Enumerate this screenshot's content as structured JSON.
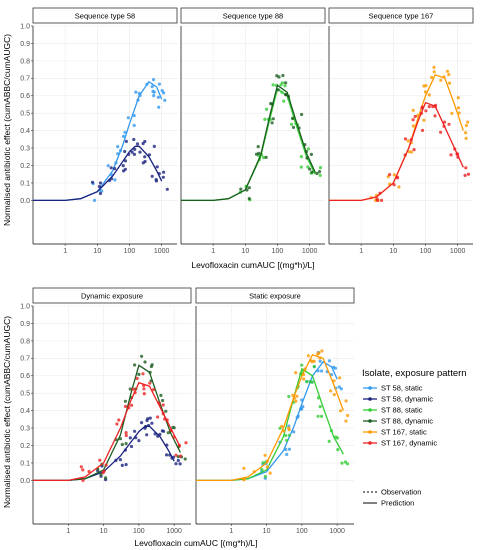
{
  "chart_data": [
    {
      "type": "line",
      "facets": [
        "Sequence type 58",
        "Sequence type 88",
        "Sequence type 167"
      ],
      "xlabel": "Levofloxacin cumAUC [(mg*h)/L]",
      "ylabel": "Normalised antibiotic effect (cumABBC/cumAUGC)",
      "x_scale": "log10",
      "xlim": [
        0.1,
        3000
      ],
      "ylim": [
        -0.25,
        1.0
      ],
      "x_ticks": [
        "1",
        "10",
        "100",
        "1000"
      ],
      "y_ticks": [
        "0.0",
        "0.1",
        "0.2",
        "0.3",
        "0.4",
        "0.5",
        "0.6",
        "0.7",
        "0.8",
        "0.9",
        "1.0"
      ],
      "series": [
        {
          "facet": 0,
          "name": "ST 58, static",
          "color": "#3399ee",
          "kind": "prediction",
          "x": [
            0.1,
            1,
            3,
            10,
            30,
            60,
            100,
            200,
            400,
            700,
            1000
          ],
          "y": [
            0.0,
            0.0,
            0.01,
            0.05,
            0.17,
            0.31,
            0.44,
            0.6,
            0.68,
            0.65,
            0.58
          ]
        },
        {
          "facet": 0,
          "name": "ST 58, dynamic",
          "color": "#1a237e",
          "kind": "prediction",
          "x": [
            0.1,
            1,
            3,
            10,
            30,
            60,
            100,
            150,
            200,
            400,
            700,
            1000
          ],
          "y": [
            0.0,
            0.0,
            0.01,
            0.05,
            0.14,
            0.22,
            0.28,
            0.31,
            0.31,
            0.25,
            0.17,
            0.11
          ]
        },
        {
          "facet": 1,
          "name": "ST 88, static",
          "color": "#33cc33",
          "kind": "prediction",
          "x": [
            0.1,
            1,
            3,
            10,
            30,
            60,
            100,
            200,
            400,
            800,
            1500
          ],
          "y": [
            0.0,
            0.0,
            0.01,
            0.06,
            0.25,
            0.48,
            0.64,
            0.6,
            0.42,
            0.25,
            0.15
          ]
        },
        {
          "facet": 1,
          "name": "ST 88, dynamic",
          "color": "#1b5e20",
          "kind": "prediction",
          "x": [
            0.1,
            1,
            3,
            10,
            30,
            60,
            100,
            200,
            400,
            800,
            1500
          ],
          "y": [
            0.0,
            0.0,
            0.01,
            0.06,
            0.26,
            0.5,
            0.66,
            0.62,
            0.44,
            0.27,
            0.16
          ]
        },
        {
          "facet": 2,
          "name": "ST 167, static",
          "color": "#ff9900",
          "kind": "prediction",
          "x": [
            0.1,
            1,
            3,
            10,
            30,
            60,
            100,
            200,
            400,
            800,
            1500
          ],
          "y": [
            0.0,
            0.0,
            0.02,
            0.1,
            0.3,
            0.48,
            0.6,
            0.72,
            0.7,
            0.55,
            0.4
          ]
        },
        {
          "facet": 2,
          "name": "ST 167, dynamic",
          "color": "#ee2222",
          "kind": "prediction",
          "x": [
            0.1,
            1,
            3,
            10,
            30,
            60,
            100,
            200,
            400,
            800,
            1500
          ],
          "y": [
            0.0,
            0.0,
            0.02,
            0.1,
            0.3,
            0.46,
            0.56,
            0.54,
            0.42,
            0.3,
            0.19
          ]
        }
      ]
    },
    {
      "type": "line",
      "facets": [
        "Dynamic exposure",
        "Static exposure"
      ],
      "xlabel": "Levofloxacin cumAUC [(mg*h)/L]",
      "ylabel": "Normalised antibiotic effect (cumABBC/cumAUGC)",
      "x_scale": "log10",
      "xlim": [
        0.1,
        3000
      ],
      "ylim": [
        -0.25,
        1.0
      ],
      "x_ticks": [
        "1",
        "10",
        "100",
        "1000"
      ],
      "y_ticks": [
        "0.0",
        "0.1",
        "0.2",
        "0.3",
        "0.4",
        "0.5",
        "0.6",
        "0.7",
        "0.8",
        "0.9",
        "1.0"
      ],
      "series": [
        {
          "facet": 0,
          "name": "ST 58, dynamic",
          "color": "#1a237e",
          "kind": "prediction",
          "x": [
            0.1,
            1,
            3,
            10,
            30,
            60,
            100,
            150,
            200,
            400,
            700,
            1000
          ],
          "y": [
            0.0,
            0.0,
            0.01,
            0.05,
            0.14,
            0.22,
            0.28,
            0.31,
            0.31,
            0.25,
            0.17,
            0.11
          ]
        },
        {
          "facet": 0,
          "name": "ST 88, dynamic",
          "color": "#1b5e20",
          "kind": "prediction",
          "x": [
            0.1,
            1,
            3,
            10,
            30,
            60,
            100,
            200,
            400,
            800,
            1500
          ],
          "y": [
            0.0,
            0.0,
            0.01,
            0.06,
            0.26,
            0.5,
            0.66,
            0.62,
            0.44,
            0.27,
            0.16
          ]
        },
        {
          "facet": 0,
          "name": "ST 167, dynamic",
          "color": "#ee2222",
          "kind": "prediction",
          "x": [
            0.1,
            1,
            3,
            10,
            30,
            60,
            100,
            200,
            400,
            800,
            1500
          ],
          "y": [
            0.0,
            0.0,
            0.02,
            0.1,
            0.3,
            0.46,
            0.56,
            0.54,
            0.42,
            0.3,
            0.19
          ]
        },
        {
          "facet": 1,
          "name": "ST 58, static",
          "color": "#3399ee",
          "kind": "prediction",
          "x": [
            0.1,
            1,
            3,
            10,
            30,
            60,
            100,
            200,
            400,
            700,
            1000
          ],
          "y": [
            0.0,
            0.0,
            0.01,
            0.05,
            0.17,
            0.31,
            0.44,
            0.6,
            0.68,
            0.65,
            0.58
          ]
        },
        {
          "facet": 1,
          "name": "ST 88, static",
          "color": "#33cc33",
          "kind": "prediction",
          "x": [
            0.1,
            1,
            3,
            10,
            30,
            60,
            100,
            200,
            400,
            800,
            1500
          ],
          "y": [
            0.0,
            0.0,
            0.01,
            0.06,
            0.25,
            0.48,
            0.64,
            0.6,
            0.42,
            0.25,
            0.15
          ]
        },
        {
          "facet": 1,
          "name": "ST 167, static",
          "color": "#ff9900",
          "kind": "prediction",
          "x": [
            0.1,
            1,
            3,
            10,
            30,
            60,
            100,
            200,
            400,
            800,
            1500
          ],
          "y": [
            0.0,
            0.0,
            0.02,
            0.1,
            0.3,
            0.48,
            0.6,
            0.72,
            0.7,
            0.55,
            0.4
          ]
        }
      ]
    }
  ],
  "legend": {
    "title": "Isolate, exposure pattern",
    "items": [
      {
        "label": "ST  58, static",
        "color": "#3399ee"
      },
      {
        "label": "ST  58, dynamic",
        "color": "#1a237e"
      },
      {
        "label": "ST  88, static",
        "color": "#33cc33"
      },
      {
        "label": "ST  88, dynamic",
        "color": "#1b5e20"
      },
      {
        "label": "ST 167, static",
        "color": "#ff9900"
      },
      {
        "label": "ST 167, dynamic",
        "color": "#ee2222"
      }
    ],
    "linetypes": [
      {
        "label": "Observation",
        "style": "dashed"
      },
      {
        "label": "Prediction",
        "style": "solid"
      }
    ]
  }
}
